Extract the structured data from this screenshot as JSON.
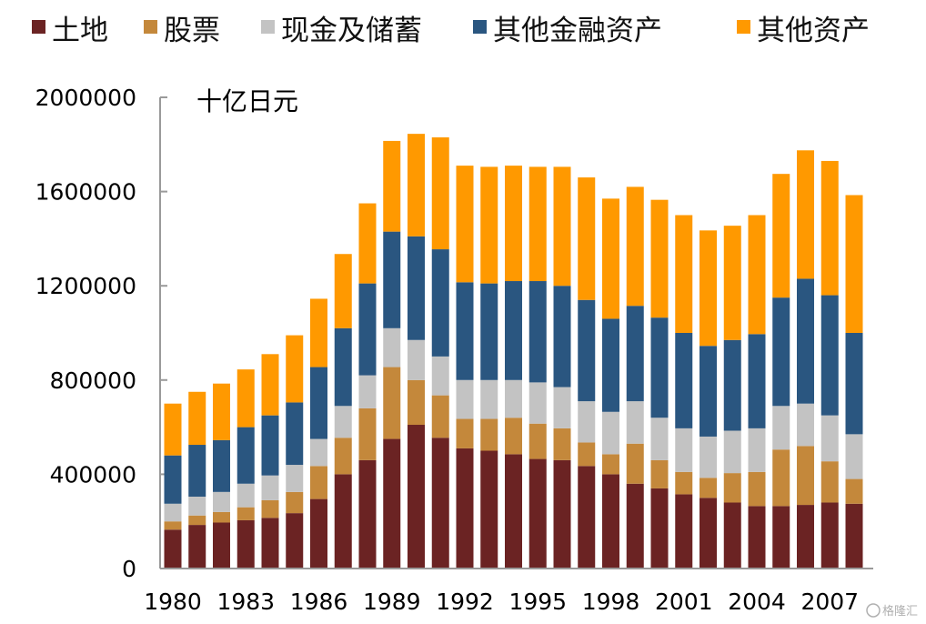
{
  "chart_data": {
    "type": "bar",
    "stacked": true,
    "unit_label": "十亿日元",
    "ylim": [
      0,
      2000000
    ],
    "y_ticks": [
      "0",
      "400000",
      "800000",
      "1200000",
      "1600000",
      "2000000"
    ],
    "x_tick_labels": [
      "1980",
      "1983",
      "1986",
      "1989",
      "1992",
      "1995",
      "1998",
      "2001",
      "2004",
      "2007"
    ],
    "categories": [
      "1980",
      "1981",
      "1982",
      "1983",
      "1984",
      "1985",
      "1986",
      "1987",
      "1988",
      "1989",
      "1990",
      "1991",
      "1992",
      "1993",
      "1994",
      "1995",
      "1996",
      "1997",
      "1998",
      "1999",
      "2000",
      "2001",
      "2002",
      "2003",
      "2004",
      "2005",
      "2006",
      "2007",
      "2008"
    ],
    "legend_position": "top",
    "grid": false,
    "series": [
      {
        "name": "土地",
        "color": "#6b2323",
        "values": [
          165000,
          185000,
          195000,
          205000,
          215000,
          235000,
          295000,
          400000,
          460000,
          550000,
          610000,
          555000,
          510000,
          500000,
          485000,
          465000,
          460000,
          435000,
          400000,
          360000,
          340000,
          315000,
          300000,
          280000,
          265000,
          265000,
          270000,
          280000,
          275000
        ]
      },
      {
        "name": "股票",
        "color": "#c4883b",
        "values": [
          35000,
          40000,
          45000,
          55000,
          75000,
          90000,
          140000,
          155000,
          220000,
          305000,
          190000,
          180000,
          125000,
          135000,
          155000,
          150000,
          135000,
          100000,
          85000,
          170000,
          120000,
          95000,
          85000,
          125000,
          145000,
          240000,
          250000,
          175000,
          105000
        ]
      },
      {
        "name": "现金及储蓄",
        "color": "#c3c3c3",
        "values": [
          75000,
          80000,
          85000,
          100000,
          105000,
          115000,
          115000,
          135000,
          140000,
          165000,
          170000,
          165000,
          165000,
          165000,
          160000,
          175000,
          175000,
          175000,
          180000,
          180000,
          180000,
          185000,
          175000,
          180000,
          185000,
          185000,
          180000,
          195000,
          190000
        ]
      },
      {
        "name": "其他金融资产",
        "color": "#2a5680",
        "values": [
          205000,
          220000,
          220000,
          240000,
          255000,
          265000,
          305000,
          330000,
          390000,
          410000,
          440000,
          455000,
          415000,
          410000,
          420000,
          430000,
          430000,
          430000,
          395000,
          405000,
          425000,
          405000,
          385000,
          385000,
          400000,
          460000,
          530000,
          510000,
          430000
        ]
      },
      {
        "name": "其他资产",
        "color": "#ff9900",
        "values": [
          220000,
          225000,
          240000,
          245000,
          260000,
          285000,
          290000,
          315000,
          340000,
          385000,
          435000,
          475000,
          495000,
          495000,
          490000,
          485000,
          505000,
          520000,
          510000,
          505000,
          500000,
          500000,
          490000,
          485000,
          505000,
          525000,
          545000,
          570000,
          585000
        ]
      }
    ]
  },
  "watermark": "格隆汇"
}
